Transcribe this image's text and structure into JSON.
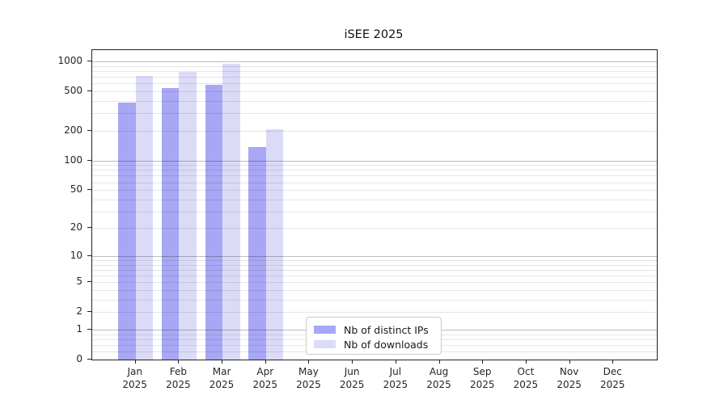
{
  "title": "iSEE 2025",
  "chart_data": {
    "type": "bar",
    "title": "iSEE 2025",
    "categories": [
      "Jan 2025",
      "Feb 2025",
      "Mar 2025",
      "Apr 2025",
      "May 2025",
      "Jun 2025",
      "Jul 2025",
      "Aug 2025",
      "Sep 2025",
      "Oct 2025",
      "Nov 2025",
      "Dec 2025"
    ],
    "series": [
      {
        "name": "Nb of distinct IPs",
        "color": "#a7a7f5",
        "values": [
          389,
          541,
          581,
          137,
          null,
          null,
          null,
          null,
          null,
          null,
          null,
          null
        ]
      },
      {
        "name": "Nb of downloads",
        "color": "#dbdbf8",
        "values": [
          714,
          793,
          956,
          206,
          null,
          null,
          null,
          null,
          null,
          null,
          null,
          null
        ]
      }
    ],
    "yscale": "log10(1+y)",
    "yticks": [
      0,
      1,
      2,
      5,
      10,
      20,
      50,
      100,
      200,
      500,
      1000
    ],
    "ylim": [
      0,
      1320
    ],
    "xlabel": "",
    "ylabel": "",
    "grid": true,
    "legend_position": "lower center"
  }
}
